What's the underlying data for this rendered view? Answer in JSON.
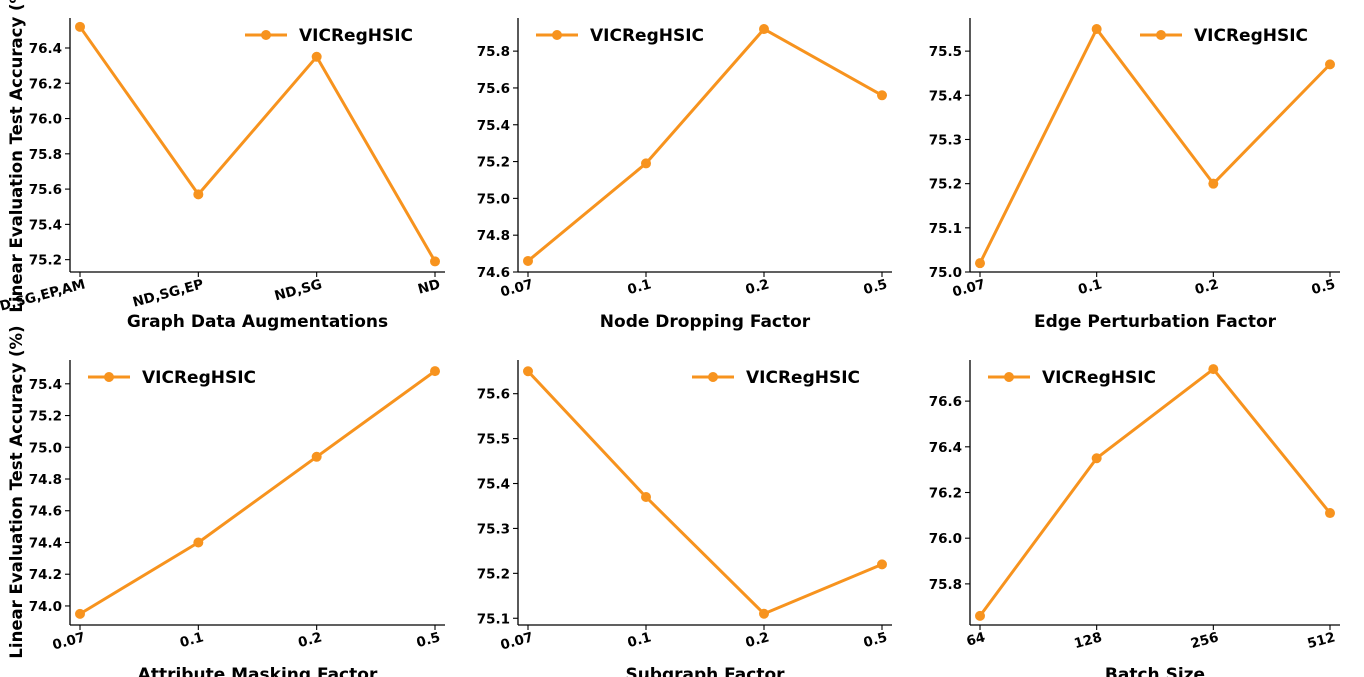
{
  "y_axis_label": "Linear Evaluation Test Accuracy (%)",
  "color": "#F7931E",
  "chart_data": [
    {
      "type": "line",
      "xlabel": "Graph Data Augmentations",
      "categories": [
        "ND,SG,EP,AM",
        "ND,SG,EP",
        "ND,SG",
        "ND"
      ],
      "series": [
        {
          "name": "VICRegHSIC",
          "values": [
            76.52,
            75.57,
            76.35,
            75.19
          ]
        }
      ],
      "yticks": [
        "75.2",
        "75.4",
        "75.6",
        "75.8",
        "76.0",
        "76.2",
        "76.4"
      ],
      "ylim": [
        75.13,
        76.57
      ],
      "legend": "top-right"
    },
    {
      "type": "line",
      "xlabel": "Node Dropping Factor",
      "categories": [
        "0.07",
        "0.1",
        "0.2",
        "0.5"
      ],
      "series": [
        {
          "name": "VICRegHSIC",
          "values": [
            74.66,
            75.19,
            75.92,
            75.56
          ]
        }
      ],
      "yticks": [
        "74.6",
        "74.8",
        "75.0",
        "75.2",
        "75.4",
        "75.6",
        "75.8"
      ],
      "ylim": [
        74.6,
        75.98
      ],
      "legend": "top-left"
    },
    {
      "type": "line",
      "xlabel": "Edge Perturbation Factor",
      "categories": [
        "0.07",
        "0.1",
        "0.2",
        "0.5"
      ],
      "series": [
        {
          "name": "VICRegHSIC",
          "values": [
            75.02,
            75.55,
            75.2,
            75.47
          ]
        }
      ],
      "yticks": [
        "75.0",
        "75.1",
        "75.2",
        "75.3",
        "75.4",
        "75.5"
      ],
      "ylim": [
        75.0,
        75.575
      ],
      "legend": "top-right"
    },
    {
      "type": "line",
      "xlabel": "Attribute Masking Factor",
      "categories": [
        "0.07",
        "0.1",
        "0.2",
        "0.5"
      ],
      "series": [
        {
          "name": "VICRegHSIC",
          "values": [
            73.95,
            74.4,
            74.94,
            75.48
          ]
        }
      ],
      "yticks": [
        "74.0",
        "74.2",
        "74.4",
        "74.6",
        "74.8",
        "75.0",
        "75.2",
        "75.4"
      ],
      "ylim": [
        73.88,
        75.55
      ],
      "legend": "top-left"
    },
    {
      "type": "line",
      "xlabel": "Subgraph Factor",
      "categories": [
        "0.07",
        "0.1",
        "0.2",
        "0.5"
      ],
      "series": [
        {
          "name": "VICRegHSIC",
          "values": [
            75.65,
            75.37,
            75.11,
            75.22
          ]
        }
      ],
      "yticks": [
        "75.1",
        "75.2",
        "75.3",
        "75.4",
        "75.5",
        "75.6"
      ],
      "ylim": [
        75.085,
        75.675
      ],
      "legend": "top-right"
    },
    {
      "type": "line",
      "xlabel": "Batch Size",
      "categories": [
        "64",
        "128",
        "256",
        "512"
      ],
      "series": [
        {
          "name": "VICRegHSIC",
          "values": [
            75.66,
            76.35,
            76.74,
            76.11
          ]
        }
      ],
      "yticks": [
        "75.8",
        "76.0",
        "76.2",
        "76.4",
        "76.6"
      ],
      "ylim": [
        75.62,
        76.78
      ],
      "legend": "top-left"
    }
  ]
}
